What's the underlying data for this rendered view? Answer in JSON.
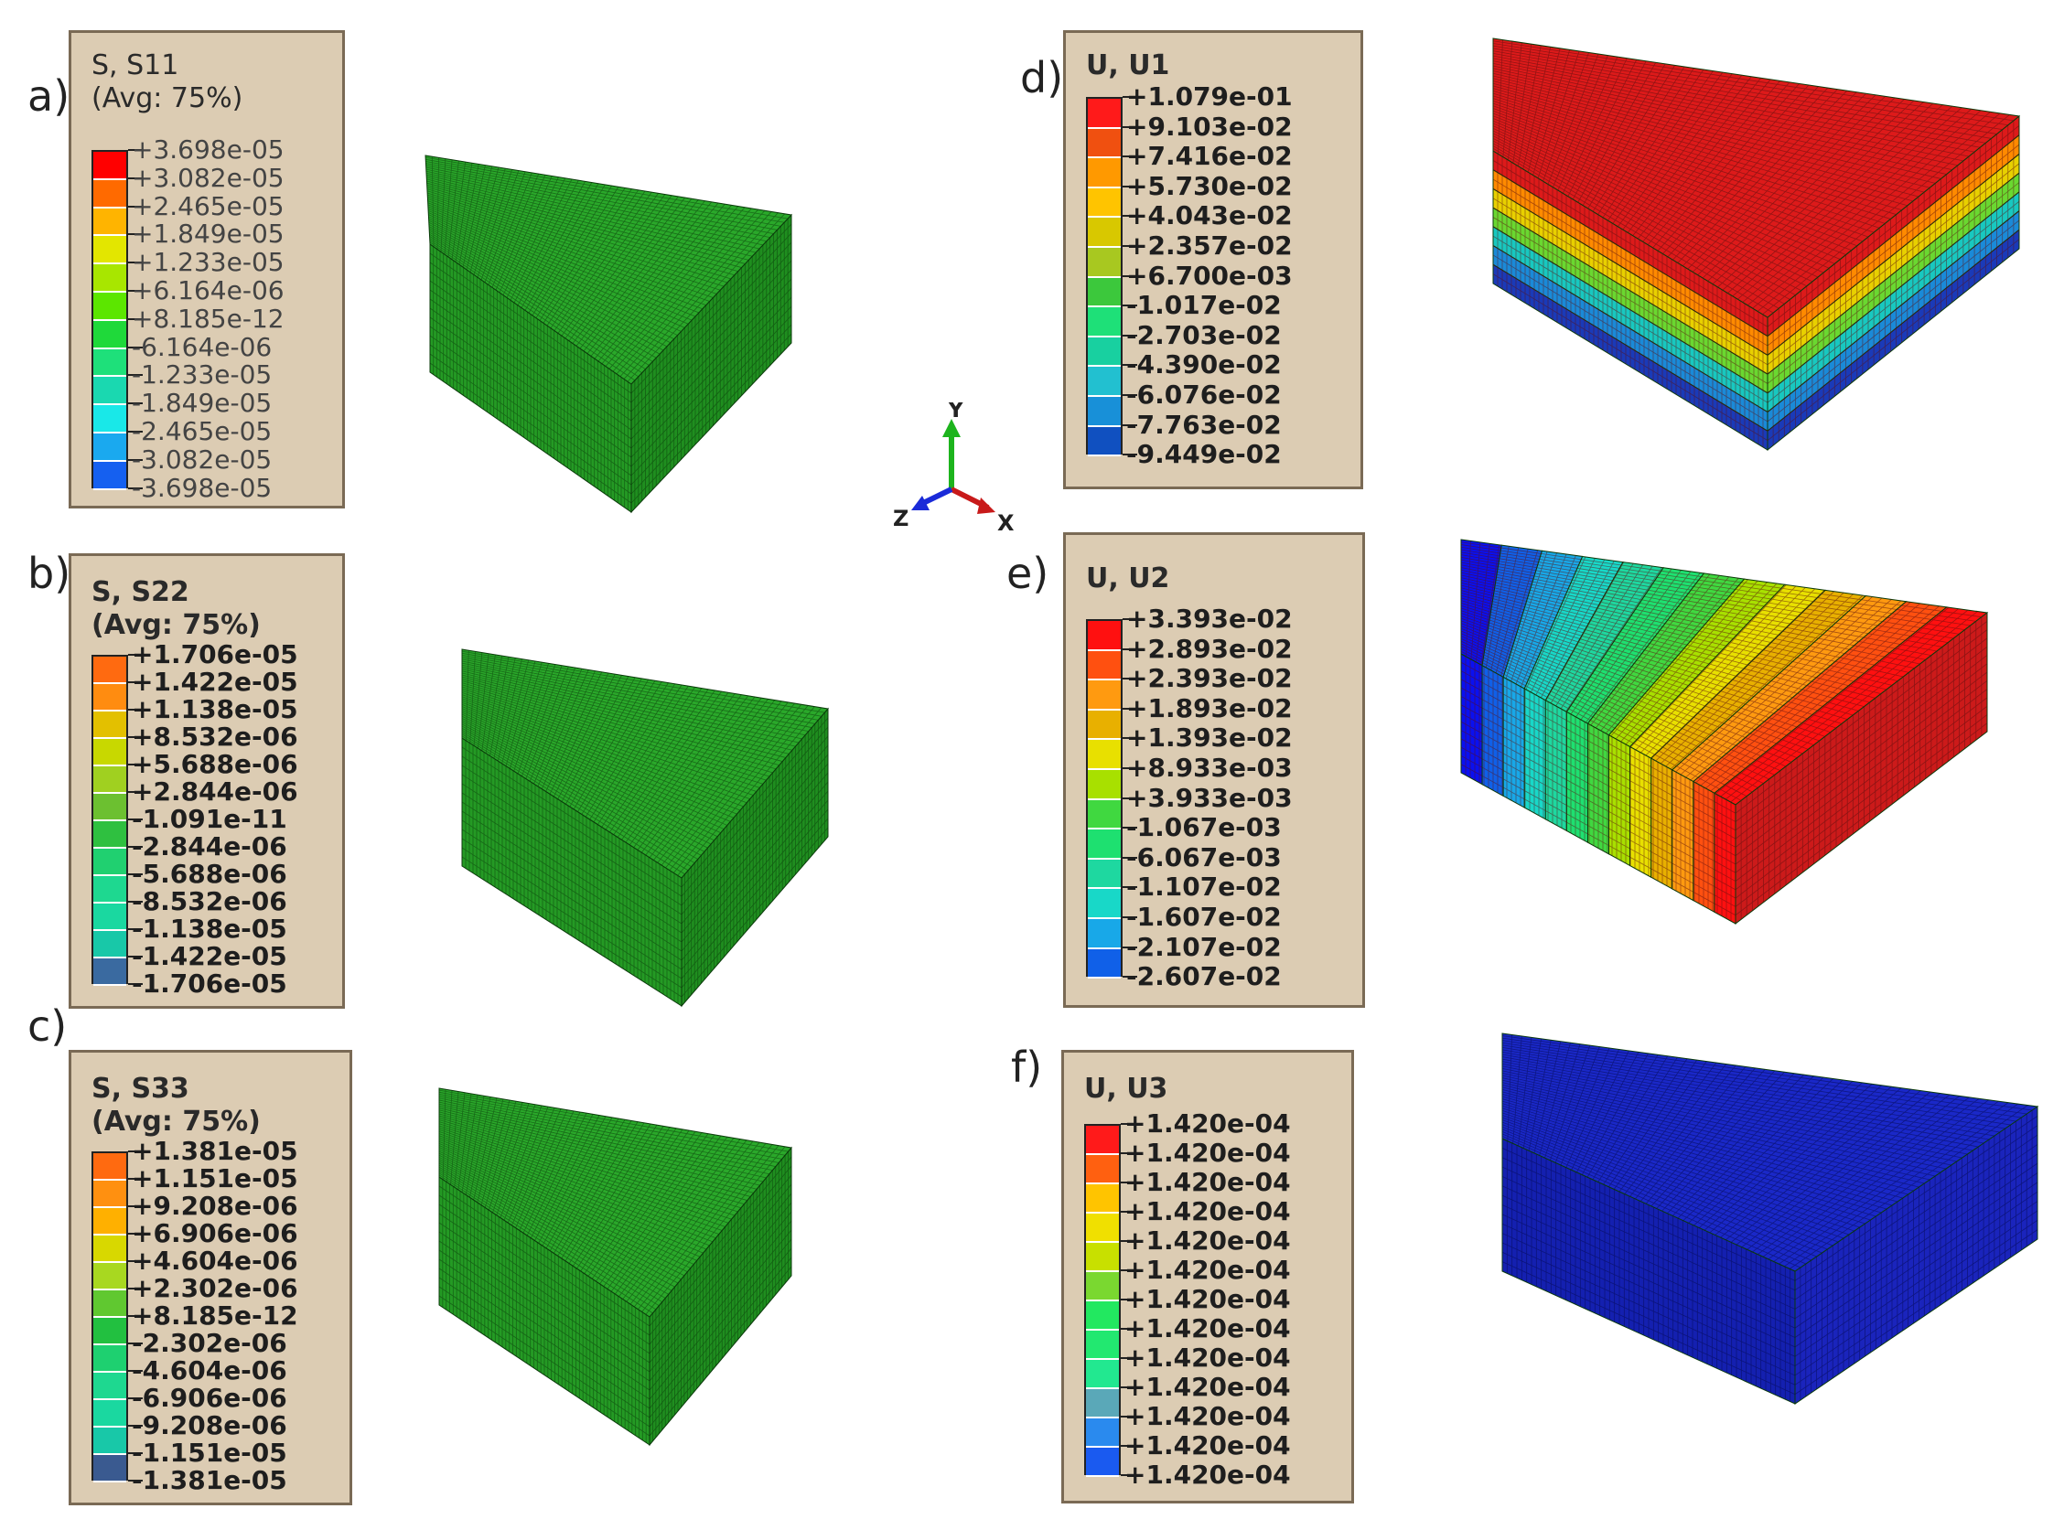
{
  "panels": [
    {
      "id": "a",
      "label": "a)",
      "title1": "S, S11",
      "title2": "(Avg: 75%)",
      "bold": false,
      "values": [
        "+3.698e-05",
        "+3.082e-05",
        "+2.465e-05",
        "+1.849e-05",
        "+1.233e-05",
        "+6.164e-06",
        "+8.185e-12",
        "-6.164e-06",
        "-1.233e-05",
        "-1.849e-05",
        "-2.465e-05",
        "-3.082e-05",
        "-3.698e-05"
      ],
      "colors": [
        "#ff0000",
        "#ff6a00",
        "#ffb400",
        "#e3e600",
        "#a8e600",
        "#5ce600",
        "#1fd93a",
        "#1ee07a",
        "#1ad8b0",
        "#19e8e8",
        "#1aa9ef",
        "#1560f0",
        "#0a0af5"
      ],
      "model_colors": {
        "top": "#2aa82a",
        "front": "#249a24",
        "side": "#1f8e1f"
      }
    },
    {
      "id": "b",
      "label": "b)",
      "title1": "S, S22",
      "title2": "(Avg: 75%)",
      "bold": true,
      "values": [
        "+1.706e-05",
        "+1.422e-05",
        "+1.138e-05",
        "+8.532e-06",
        "+5.688e-06",
        "+2.844e-06",
        "-1.091e-11",
        "-2.844e-06",
        "-5.688e-06",
        "-8.532e-06",
        "-1.138e-05",
        "-1.422e-05",
        "-1.706e-05"
      ],
      "colors": [
        "#ff6a10",
        "#ff8c10",
        "#e3c000",
        "#c8d800",
        "#a0d020",
        "#6cc030",
        "#2fc040",
        "#20d070",
        "#1ed890",
        "#1ad8a0",
        "#18c8a8",
        "#3a6aa0",
        "#1a2a7a"
      ],
      "model_colors": {
        "top": "#2aa82a",
        "front": "#249a24",
        "side": "#1f8e1f"
      }
    },
    {
      "id": "c",
      "label": "c)",
      "title1": "S, S33",
      "title2": "(Avg: 75%)",
      "bold": true,
      "values": [
        "+1.381e-05",
        "+1.151e-05",
        "+9.208e-06",
        "+6.906e-06",
        "+4.604e-06",
        "+2.302e-06",
        "+8.185e-12",
        "-2.302e-06",
        "-4.604e-06",
        "-6.906e-06",
        "-9.208e-06",
        "-1.151e-05",
        "-1.381e-05"
      ],
      "colors": [
        "#ff6a10",
        "#ff9010",
        "#ffb000",
        "#d8d800",
        "#a8d820",
        "#60c830",
        "#22c040",
        "#1ed070",
        "#1ed890",
        "#1ad8a0",
        "#18c8a8",
        "#3a5a90",
        "#1a2a6a"
      ],
      "model_colors": {
        "top": "#2aa82a",
        "front": "#249a24",
        "side": "#1f8e1f"
      }
    },
    {
      "id": "d",
      "label": "d)",
      "title1": "U, U1",
      "title2": "",
      "bold": true,
      "values": [
        "+1.079e-01",
        "+9.103e-02",
        "+7.416e-02",
        "+5.730e-02",
        "+4.043e-02",
        "+2.357e-02",
        "+6.700e-03",
        "-1.017e-02",
        "-2.703e-02",
        "-4.390e-02",
        "-6.076e-02",
        "-7.763e-02",
        "-9.449e-02"
      ],
      "colors": [
        "#ff1a1a",
        "#f05010",
        "#ff9900",
        "#ffc400",
        "#d8c800",
        "#a8c820",
        "#3cc83c",
        "#1ee078",
        "#18d0a0",
        "#22c0d0",
        "#1890d8",
        "#1050c0",
        "#0a1a90"
      ],
      "model_colors": {
        "top": "#dd1a1a",
        "front": "#ff4a10",
        "side": "#d81818"
      }
    },
    {
      "id": "e",
      "label": "e)",
      "title1": "U, U2",
      "title2": "",
      "bold": true,
      "values": [
        "+3.393e-02",
        "+2.893e-02",
        "+2.393e-02",
        "+1.893e-02",
        "+1.393e-02",
        "+8.933e-03",
        "+3.933e-03",
        "-1.067e-03",
        "-6.067e-03",
        "-1.107e-02",
        "-1.607e-02",
        "-2.107e-02",
        "-2.607e-02"
      ],
      "colors": [
        "#ff1010",
        "#ff5010",
        "#ff9a10",
        "#e8b000",
        "#e8e000",
        "#a8e000",
        "#40d840",
        "#1ee070",
        "#1ed8a0",
        "#18d8c8",
        "#18a8e8",
        "#1060e8",
        "#0a10f0"
      ],
      "model_colors": {
        "top": "#1a3ad8",
        "front": "#cc1a1a",
        "side": "#dd2a1a"
      }
    },
    {
      "id": "f",
      "label": "f)",
      "title1": "U, U3",
      "title2": "",
      "bold": true,
      "values": [
        "+1.420e-04",
        "+1.420e-04",
        "+1.420e-04",
        "+1.420e-04",
        "+1.420e-04",
        "+1.420e-04",
        "+1.420e-04",
        "+1.420e-04",
        "+1.420e-04",
        "+1.420e-04",
        "+1.420e-04",
        "+1.420e-04",
        "+1.420e-04"
      ],
      "colors": [
        "#ff1a1a",
        "#ff6010",
        "#ffc400",
        "#f0e000",
        "#c8e000",
        "#7ad830",
        "#22e860",
        "#22e870",
        "#22e890",
        "#5aa8b8",
        "#2a8aee",
        "#1a5af0",
        "#0a10f5"
      ],
      "model_colors": {
        "top": "#1a28c8",
        "front": "#1420b0",
        "side": "#1a24bc"
      }
    }
  ],
  "triad": {
    "x": "X",
    "y": "Y",
    "z": "Z"
  }
}
